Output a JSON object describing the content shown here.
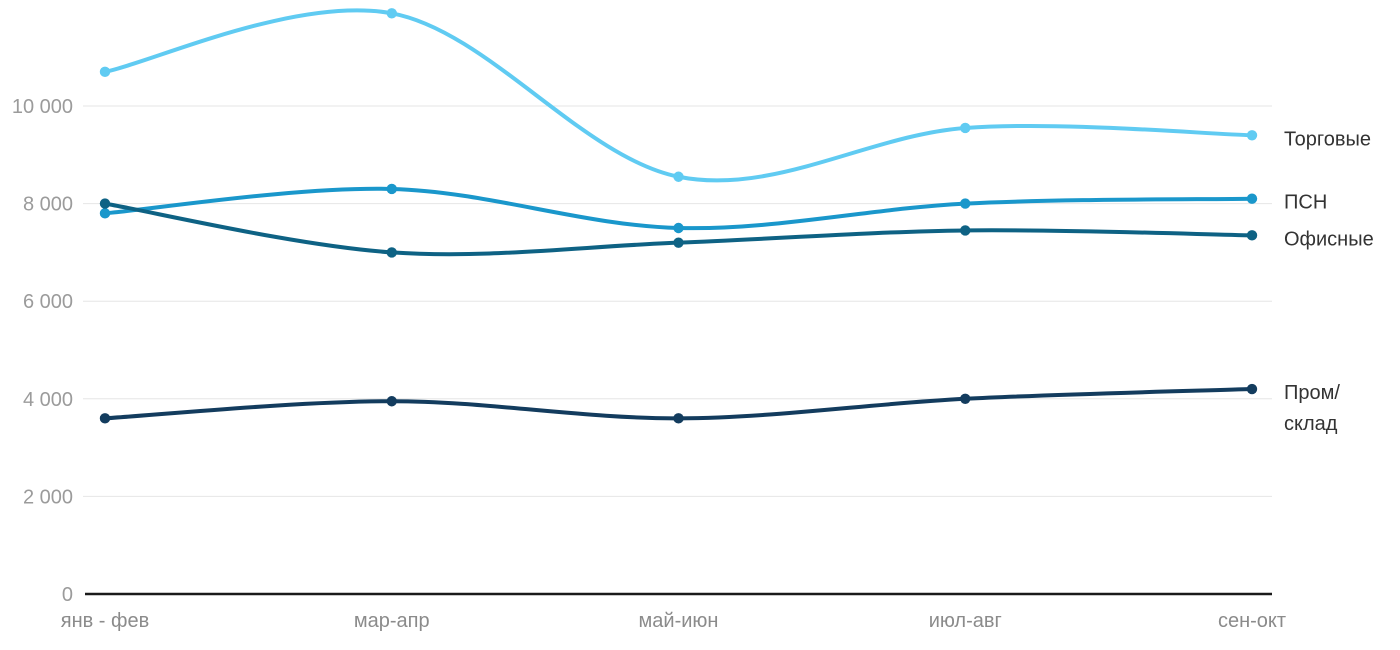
{
  "chart_data": {
    "type": "line",
    "title": "",
    "xlabel": "",
    "ylabel": "",
    "categories": [
      "янв - фев",
      "мар-апр",
      "май-июн",
      "июл-авг",
      "сен-окт"
    ],
    "series": [
      {
        "key": "torgovye",
        "name": "Торговые",
        "label_lines": [
          "Торговые"
        ],
        "color": "#60CBF2",
        "values": [
          10700,
          11900,
          8550,
          9550,
          9400
        ]
      },
      {
        "key": "psn",
        "name": "ПСН",
        "label_lines": [
          "ПСН"
        ],
        "color": "#1A97CB",
        "values": [
          7800,
          8300,
          7500,
          8000,
          8100
        ]
      },
      {
        "key": "ofisnye",
        "name": "Офисные",
        "label_lines": [
          "Офисные"
        ],
        "color": "#0E6284",
        "values": [
          8000,
          7000,
          7200,
          7450,
          7350
        ]
      },
      {
        "key": "prom-sklad",
        "name": "Пром/склад",
        "label_lines": [
          "Пром/",
          "склад"
        ],
        "color": "#133C5E",
        "values": [
          3600,
          3950,
          3600,
          4000,
          4200
        ]
      }
    ],
    "y_ticks": [
      {
        "value": 0,
        "label": "0"
      },
      {
        "value": 2000,
        "label": "2 000"
      },
      {
        "value": 4000,
        "label": "4 000"
      },
      {
        "value": 6000,
        "label": "6 000"
      },
      {
        "value": 8000,
        "label": "8 000"
      },
      {
        "value": 10000,
        "label": "10 000"
      }
    ],
    "ylim": [
      0,
      12200
    ],
    "grid": true,
    "legend_position": "right-of-line-ends",
    "styles": {
      "background": "#FFFFFF",
      "grid_color": "#E6E6E6",
      "axis_color": "#1A1A1A",
      "y_tick_color": "#9B9B9B",
      "x_tick_color": "#8B8B8B",
      "series_label_color": "#333333"
    }
  }
}
